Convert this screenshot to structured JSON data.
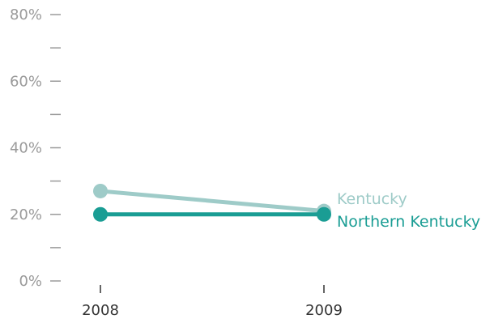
{
  "chart_data": {
    "type": "line",
    "title": "",
    "xlabel": "",
    "ylabel": "",
    "x": [
      "2008",
      "2009"
    ],
    "ylim": [
      0,
      80
    ],
    "y_ticks": [
      {
        "value": 0,
        "label": "0%"
      },
      {
        "value": 10,
        "label": ""
      },
      {
        "value": 20,
        "label": "20%"
      },
      {
        "value": 30,
        "label": ""
      },
      {
        "value": 40,
        "label": "40%"
      },
      {
        "value": 50,
        "label": ""
      },
      {
        "value": 60,
        "label": "60%"
      },
      {
        "value": 70,
        "label": ""
      },
      {
        "value": 80,
        "label": "80%"
      }
    ],
    "grid": false,
    "legend": "end-of-line labels",
    "series": [
      {
        "name": "Kentucky",
        "values": [
          27,
          21
        ],
        "color": "#9ecbc8"
      },
      {
        "name": "Northern Kentucky",
        "values": [
          20,
          20
        ],
        "color": "#1a9d94"
      }
    ]
  }
}
